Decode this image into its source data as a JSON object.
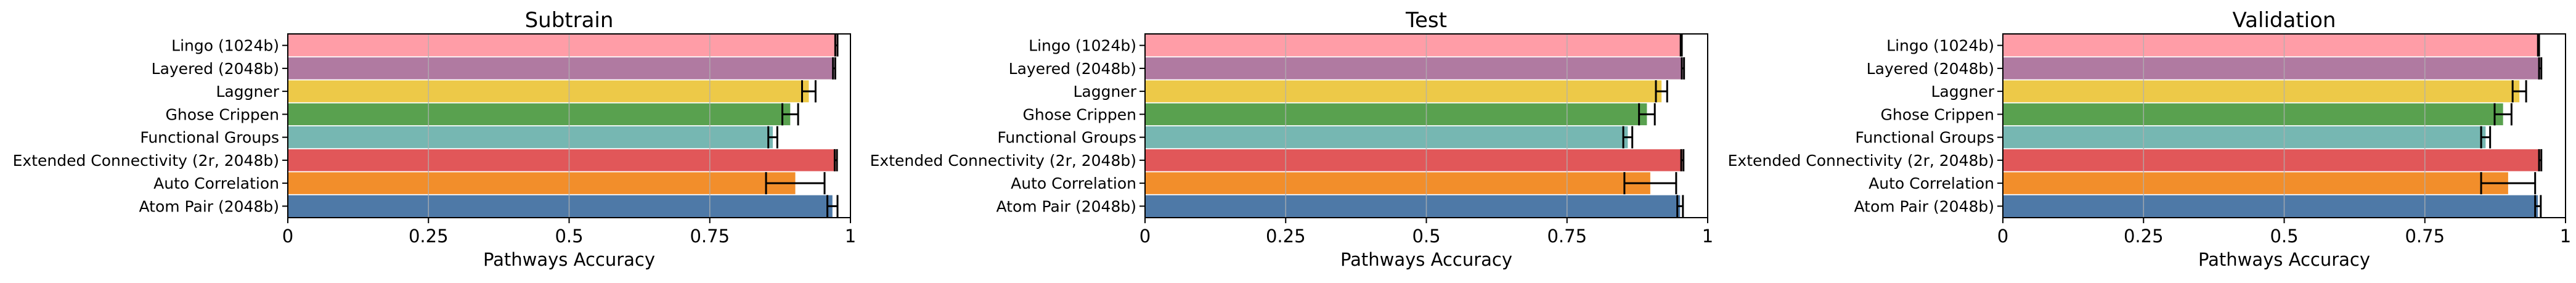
{
  "figure": {
    "xlabel": "Pathways Accuracy"
  },
  "chart_data": [
    {
      "type": "bar",
      "orientation": "horizontal",
      "title": "Subtrain",
      "xlabel": "Pathways Accuracy",
      "ylabel": "",
      "xlim": [
        0,
        1
      ],
      "xticks": [
        "0",
        "0.25",
        "0.5",
        "0.75",
        "1"
      ],
      "grid": "x",
      "categories": [
        "Lingo (1024b)",
        "Layered (2048b)",
        "Laggner",
        "Ghose Crippen",
        "Functional Groups",
        "Extended Connectivity (2r, 2048b)",
        "Auto Correlation",
        "Atom Pair (2048b)"
      ],
      "values": [
        0.975,
        0.971,
        0.926,
        0.893,
        0.862,
        0.974,
        0.902,
        0.968
      ],
      "error": [
        0.002,
        0.002,
        0.012,
        0.014,
        0.008,
        0.002,
        0.052,
        0.009
      ],
      "colors": [
        "#ff9da7",
        "#b07aa1",
        "#edc948",
        "#59a14f",
        "#76b7b2",
        "#e15759",
        "#f28e2b",
        "#4e79a7"
      ]
    },
    {
      "type": "bar",
      "orientation": "horizontal",
      "title": "Test",
      "xlabel": "Pathways Accuracy",
      "ylabel": "",
      "xlim": [
        0,
        1
      ],
      "xticks": [
        "0",
        "0.25",
        "0.5",
        "0.75",
        "1"
      ],
      "grid": "x",
      "categories": [
        "Lingo (1024b)",
        "Layered (2048b)",
        "Laggner",
        "Ghose Crippen",
        "Functional Groups",
        "Extended Connectivity (2r, 2048b)",
        "Auto Correlation",
        "Atom Pair (2048b)"
      ],
      "values": [
        0.953,
        0.956,
        0.918,
        0.892,
        0.858,
        0.955,
        0.898,
        0.951
      ],
      "error": [
        0.001,
        0.002,
        0.01,
        0.014,
        0.008,
        0.002,
        0.046,
        0.005
      ],
      "colors": [
        "#ff9da7",
        "#b07aa1",
        "#edc948",
        "#59a14f",
        "#76b7b2",
        "#e15759",
        "#f28e2b",
        "#4e79a7"
      ]
    },
    {
      "type": "bar",
      "orientation": "horizontal",
      "title": "Validation",
      "xlabel": "Pathways Accuracy",
      "ylabel": "",
      "xlim": [
        0,
        1
      ],
      "xticks": [
        "0",
        "0.25",
        "0.5",
        "0.75",
        "1"
      ],
      "grid": "x",
      "categories": [
        "Lingo (1024b)",
        "Layered (2048b)",
        "Laggner",
        "Ghose Crippen",
        "Functional Groups",
        "Extended Connectivity (2r, 2048b)",
        "Auto Correlation",
        "Atom Pair (2048b)"
      ],
      "values": [
        0.952,
        0.955,
        0.918,
        0.889,
        0.858,
        0.955,
        0.898,
        0.951
      ],
      "error": [
        0.001,
        0.002,
        0.012,
        0.015,
        0.008,
        0.002,
        0.048,
        0.005
      ],
      "colors": [
        "#ff9da7",
        "#b07aa1",
        "#edc948",
        "#59a14f",
        "#76b7b2",
        "#e15759",
        "#f28e2b",
        "#4e79a7"
      ]
    }
  ]
}
